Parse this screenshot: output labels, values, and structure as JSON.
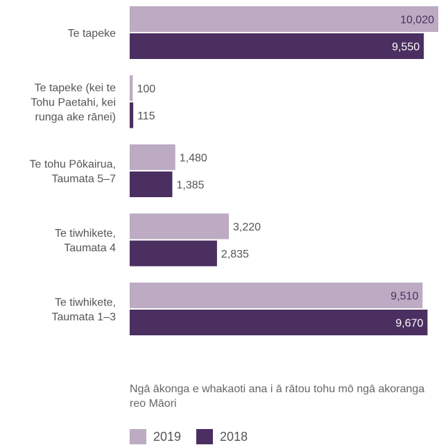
{
  "chart_data": {
    "type": "bar",
    "orientation": "horizontal",
    "categories": [
      "Te tapeke",
      "Te tapeke (kei te Tohu Paetahi, kei runga ake rānei)",
      "Te tohu Pōkairua, Taumata 5–7",
      "Te tiwhikete, Taumata 4",
      "Te tiwhikete, Taumata 1–3"
    ],
    "category_lines": [
      [
        "Te tapeke"
      ],
      [
        "Te tapeke (kei te",
        "Tohu Paetahi, kei",
        "runga ake rānei)"
      ],
      [
        "Te tohu Pōkairua,",
        "Taumata 5–7"
      ],
      [
        "Te tiwhikete,",
        "Taumata 4"
      ],
      [
        "Te tiwhikete,",
        "Taumata 1–3"
      ]
    ],
    "series": [
      {
        "name": "2019",
        "color": "#bcabc3",
        "values": [
          10020,
          100,
          1480,
          3220,
          9510
        ],
        "labels": [
          "10,020",
          "100",
          "1,480",
          "3,220",
          "9,510"
        ]
      },
      {
        "name": "2018",
        "color": "#4b2f60",
        "values": [
          9550,
          115,
          1385,
          2835,
          9670
        ],
        "labels": [
          "9,550",
          "115",
          "1,385",
          "2,835",
          "9,670"
        ]
      }
    ],
    "xlabel": "Ngā ākonga e whakaoti ana i ā rātou tohu mō ngā akoranga reo Māori",
    "ylabel": "",
    "xlim": [
      0,
      10020
    ],
    "grid": false,
    "legend_position": "bottom-left"
  }
}
